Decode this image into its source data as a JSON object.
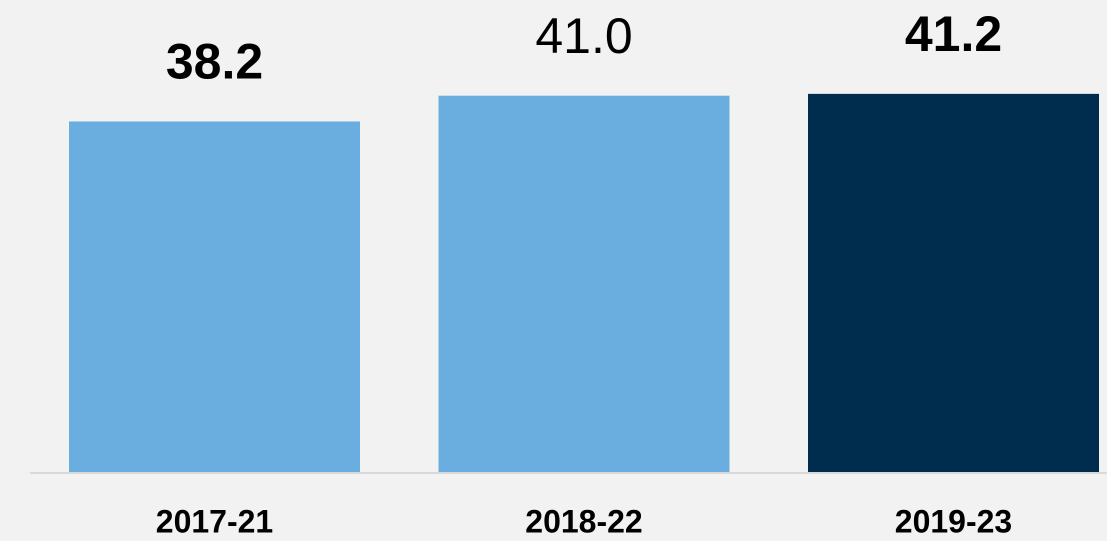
{
  "chart_data": {
    "type": "bar",
    "categories": [
      "2017-21",
      "2018-22",
      "2019-23"
    ],
    "values": [
      38.2,
      41.0,
      41.2
    ],
    "value_labels": [
      "38.2",
      "41.0",
      "41.2"
    ],
    "colors": [
      "#6aaddf",
      "#6aaddf",
      "#002d4e"
    ],
    "value_label_weights": [
      "bold",
      "normal",
      "bold"
    ],
    "ylim": [
      0,
      51.4
    ]
  }
}
